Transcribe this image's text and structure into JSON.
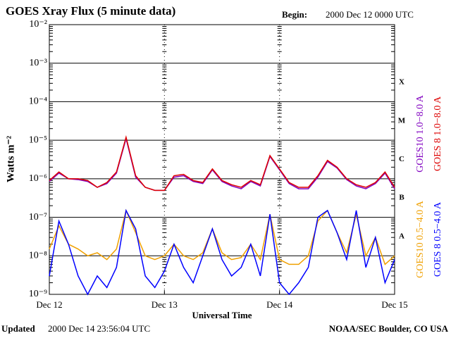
{
  "chart_data": {
    "type": "line",
    "title": "GOES Xray Flux (5 minute data)",
    "begin_label": "Begin:",
    "begin": "2000 Dec 12 0000 UTC",
    "updated_label": "Updated",
    "updated": "2000 Dec 14 23:56:04 UTC",
    "source": "NOAA/SEC Boulder, CO USA",
    "y_label": "Watts m⁻²",
    "x_label": "Universal Time",
    "log_y": true,
    "grid": true,
    "legend": "right",
    "flare_classes": [
      "A",
      "B",
      "C",
      "M",
      "X"
    ],
    "x": [
      0,
      2,
      4,
      6,
      8,
      10,
      12,
      14,
      16,
      18,
      20,
      22,
      24,
      26,
      28,
      30,
      32,
      34,
      36,
      38,
      40,
      42,
      44,
      46,
      48,
      50,
      52,
      54,
      56,
      58,
      60,
      62,
      64,
      66,
      68,
      70,
      72
    ],
    "xlim": [
      0,
      72
    ],
    "xticks": [
      {
        "value": 0,
        "label": "Dec 12"
      },
      {
        "value": 24,
        "label": "Dec 13"
      },
      {
        "value": 48,
        "label": "Dec 14"
      },
      {
        "value": 72,
        "label": "Dec 15"
      }
    ],
    "ylim": [
      1e-09,
      0.01
    ],
    "yticks": [
      {
        "value": 1e-09,
        "label": "10⁻⁹"
      },
      {
        "value": 1e-08,
        "label": "10⁻⁸"
      },
      {
        "value": 1e-07,
        "label": "10⁻⁷"
      },
      {
        "value": 1e-06,
        "label": "10⁻⁶"
      },
      {
        "value": 1e-05,
        "label": "10⁻⁵"
      },
      {
        "value": 0.0001,
        "label": "10⁻⁴"
      },
      {
        "value": 0.001,
        "label": "10⁻³"
      },
      {
        "value": 0.01,
        "label": "10⁻²"
      }
    ],
    "series": [
      {
        "name": "GOES10 1.0−8.0 A",
        "color": "#8000c0",
        "values": [
          8.5e-07,
          1.4e-06,
          1e-06,
          9.5e-07,
          8.5e-07,
          6e-07,
          7.5e-07,
          1.4e-06,
          1.1e-05,
          1.1e-06,
          6e-07,
          5e-07,
          5e-07,
          1.1e-06,
          1.2e-06,
          8.5e-07,
          7.5e-07,
          1.7e-06,
          8.5e-07,
          6.5e-07,
          5.5e-07,
          8.5e-07,
          6.5e-07,
          3.8e-06,
          1.7e-06,
          7.5e-07,
          5.5e-07,
          5.5e-07,
          1.1e-06,
          2.8e-06,
          1.9e-06,
          9.5e-07,
          6.5e-07,
          5.5e-07,
          7.5e-07,
          1.4e-06,
          5.5e-07
        ]
      },
      {
        "name": "GOES 8 1.0−8.0 A",
        "color": "#dd0000",
        "values": [
          9e-07,
          1.5e-06,
          1e-06,
          1e-06,
          9e-07,
          6e-07,
          8e-07,
          1.5e-06,
          1.2e-05,
          1.2e-06,
          6e-07,
          5e-07,
          5e-07,
          1.2e-06,
          1.3e-06,
          9e-07,
          8e-07,
          1.8e-06,
          9e-07,
          7e-07,
          6e-07,
          9e-07,
          7e-07,
          4e-06,
          1.8e-06,
          8e-07,
          6e-07,
          6e-07,
          1.2e-06,
          3e-06,
          2e-06,
          1e-06,
          7e-07,
          6e-07,
          8e-07,
          1.5e-06,
          6e-07
        ]
      },
      {
        "name": "GOES10 0.5−4.0 A",
        "color": "#f0a000",
        "values": [
          1.5e-08,
          6e-08,
          2e-08,
          1.5e-08,
          1e-08,
          1.2e-08,
          8e-09,
          1.5e-08,
          1.5e-07,
          4e-08,
          1e-08,
          8e-09,
          1e-08,
          2e-08,
          1e-08,
          8e-09,
          1.2e-08,
          5e-08,
          1.2e-08,
          8e-09,
          9e-09,
          2e-08,
          8e-09,
          1.2e-07,
          8e-09,
          6e-09,
          6e-09,
          1e-08,
          8e-08,
          1.5e-07,
          4e-08,
          1.2e-08,
          1.2e-07,
          1e-08,
          3e-08,
          6e-09,
          1e-08
        ]
      },
      {
        "name": "GOES 8 0.5−4.0 A",
        "color": "#0000ff",
        "values": [
          3e-09,
          8e-08,
          2e-08,
          3e-09,
          1e-09,
          3e-09,
          1.5e-09,
          5e-09,
          1.5e-07,
          5e-08,
          3e-09,
          1.5e-09,
          4e-09,
          2e-08,
          5e-09,
          2e-09,
          1e-08,
          5e-08,
          8e-09,
          3e-09,
          5e-09,
          2e-08,
          3e-09,
          1.2e-07,
          2e-09,
          1e-09,
          2e-09,
          5e-09,
          1e-07,
          1.5e-07,
          4e-08,
          8e-09,
          1.5e-07,
          5e-09,
          3e-08,
          2e-09,
          8e-09
        ]
      }
    ]
  }
}
